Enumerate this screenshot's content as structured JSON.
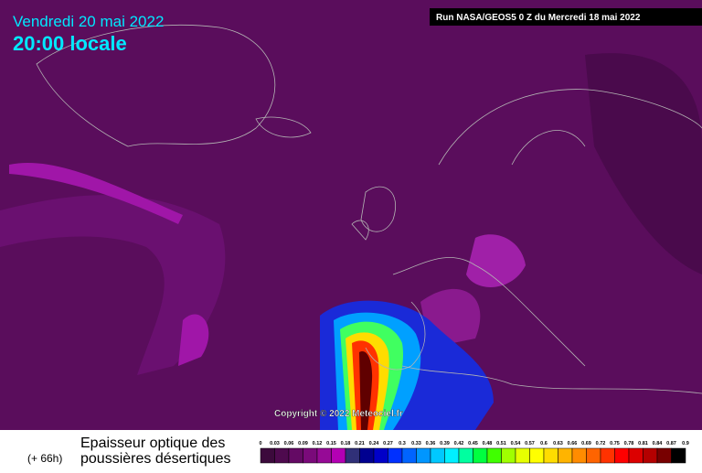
{
  "header": {
    "date": "Vendredi 20 mai 2022",
    "time": "20:00 locale",
    "run": "Run NASA/GEOS5 0 Z du Mercredi 18 mai 2022"
  },
  "copyright": "Copyright © 2022 Meteociel.fr",
  "footer": {
    "title_line1": "Epaisseur optique des",
    "title_line2": "poussières désertiques",
    "lead": "(+ 66h)"
  },
  "legend": {
    "labels": [
      "0",
      "0.03",
      "0.06",
      "0.09",
      "0.12",
      "0.15",
      "0.18",
      "0.21",
      "0.24",
      "0.27",
      "0.3",
      "0.33",
      "0.36",
      "0.39",
      "0.42",
      "0.45",
      "0.48",
      "0.51",
      "0.54",
      "0.57",
      "0.6",
      "0.63",
      "0.66",
      "0.69",
      "0.72",
      "0.75",
      "0.78",
      "0.81",
      "0.84",
      "0.87",
      "0.9"
    ],
    "colors": [
      "#3c0a3c",
      "#4e0a4e",
      "#640a64",
      "#7a0a7a",
      "#960a96",
      "#b400b4",
      "#303078",
      "#000090",
      "#0000c8",
      "#0030ff",
      "#0064ff",
      "#0096ff",
      "#00c8ff",
      "#00f0ff",
      "#00ffa0",
      "#00ff40",
      "#40ff00",
      "#a0ff00",
      "#e6ff00",
      "#ffff00",
      "#ffdc00",
      "#ffb400",
      "#ff8c00",
      "#ff6400",
      "#ff3200",
      "#ff0000",
      "#dc0000",
      "#b40000",
      "#780000",
      "#000000"
    ]
  }
}
